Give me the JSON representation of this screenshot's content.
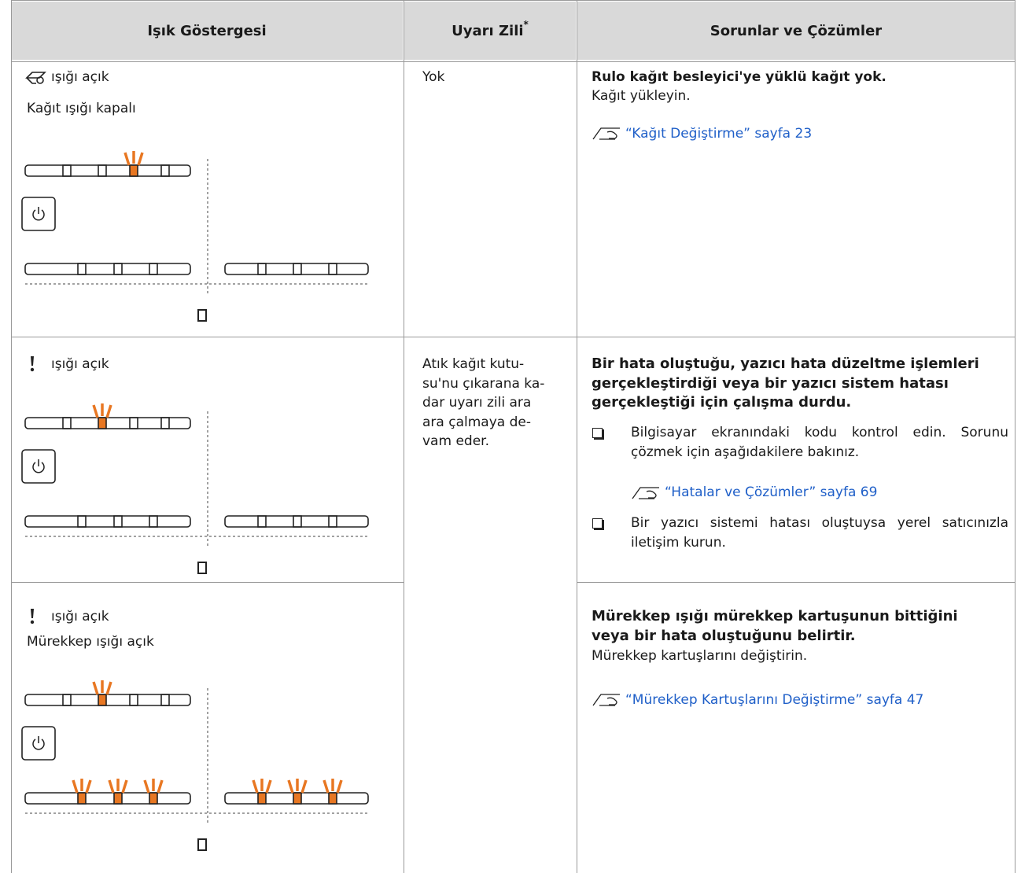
{
  "header": {
    "col1": "Işık Göstergesi",
    "col2": "Uyarı Zili",
    "col2_sup": "*",
    "col3": "Sorunlar ve Çözümler"
  },
  "rows": [
    {
      "light": [
        "ışığı açık",
        "Kağıt ışığı kapalı"
      ],
      "buzzer": [
        "Yok"
      ],
      "problem": {
        "title": "Rulo kağıt besleyici'ye yüklü kağıt yok.",
        "text": "Kağıt yükleyin.",
        "link": "“Kağıt Değiştirme” sayfa 23"
      }
    },
    {
      "light": [
        "ışığı açık"
      ],
      "buzzer": [
        "Atık kağıt kutu-",
        "su'nu çıkarana ka-",
        "dar uyarı zili ara",
        "ara çalmaya de-",
        "vam eder."
      ],
      "problem": {
        "title": "Bir hata oluştuğu, yazıcı hata düzeltme işlemleri gerçekleştirdiği veya bir yazıcı sistem hatası gerçekleştiği için çalışma durdu.",
        "bullets": [
          {
            "text": "Bilgisayar ekranındaki kodu kontrol edin. Sorunu çözmek için aşağıdakilere bakınız.",
            "link": "“Hatalar ve Çözümler” sayfa 69"
          },
          {
            "text": "Bir yazıcı sistemi hatası oluştuysa yerel satıcınızla iletişim kurun."
          }
        ]
      }
    },
    {
      "light": [
        "ışığı açık",
        "Mürekkep ışığı açık"
      ],
      "problem": {
        "title": "Mürekkep ışığı mürekkep kartuşunun bittiğini veya bir hata oluştuğunu belirtir.",
        "text": "Mürekkep kartuşlarını değiştirin.",
        "link": "“Mürekkep Kartuşlarını Değiştirme” sayfa 47"
      }
    }
  ]
}
